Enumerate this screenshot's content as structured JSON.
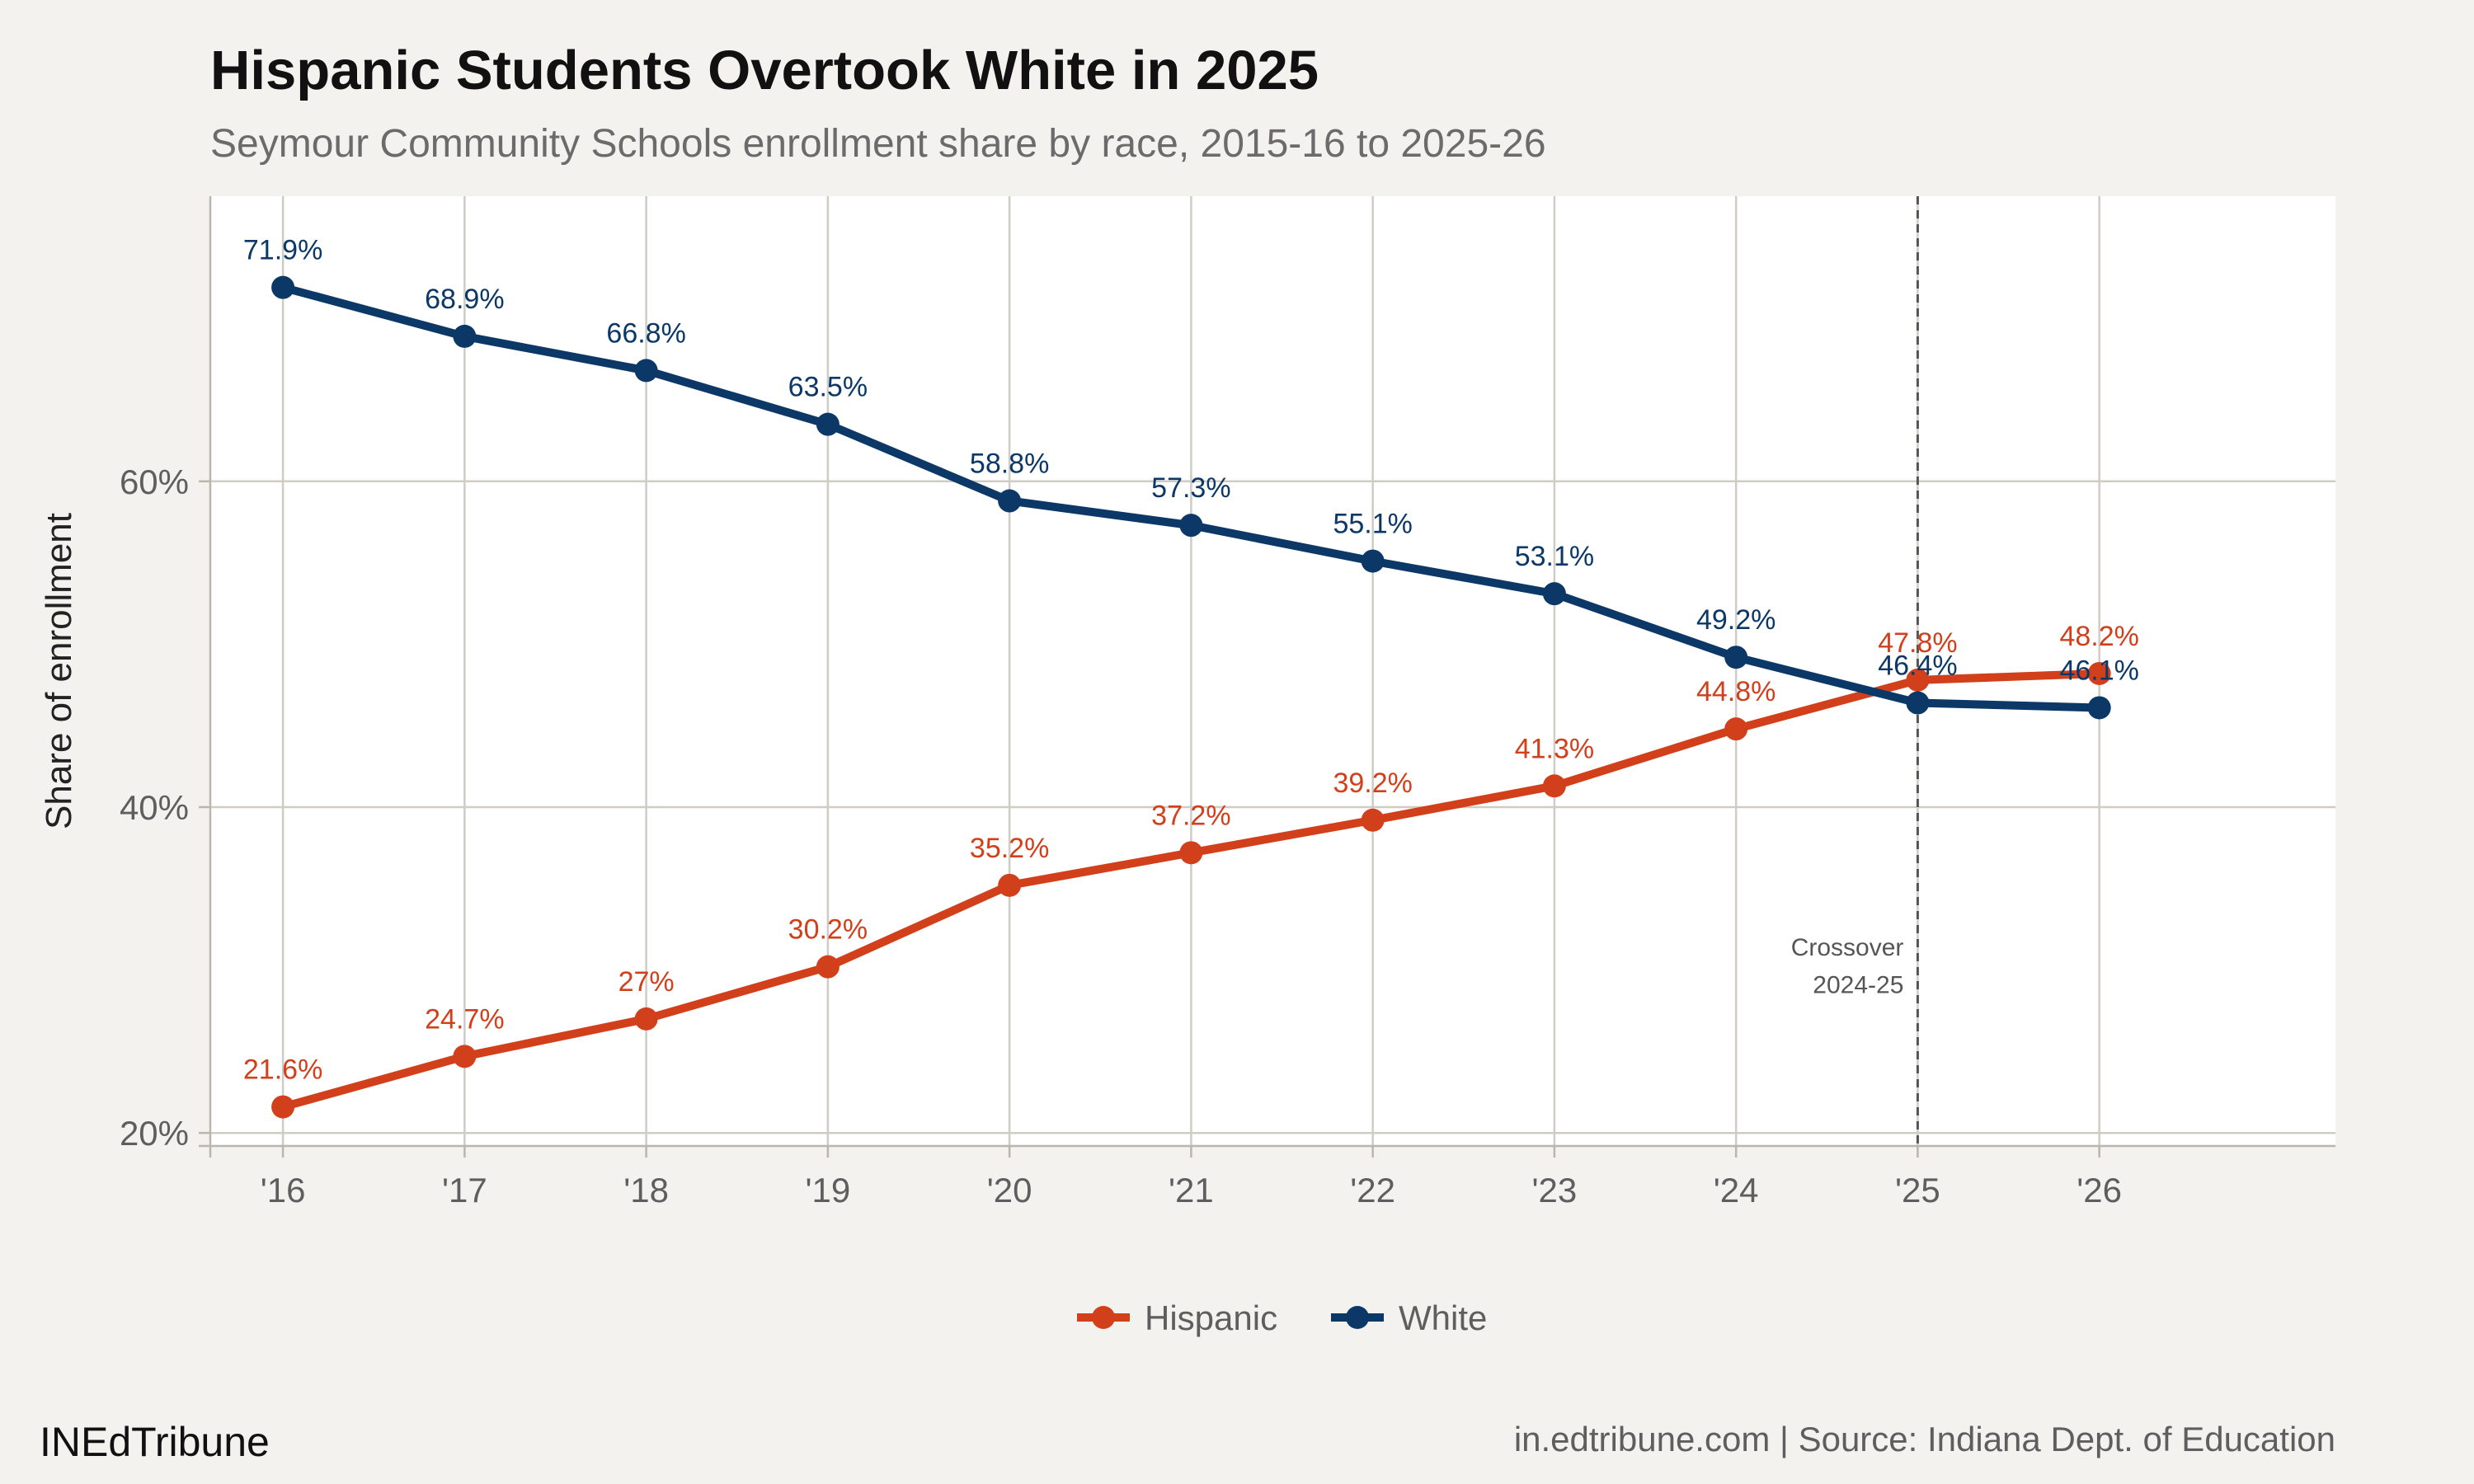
{
  "title": "Hispanic Students Overtook White in 2025",
  "subtitle": "Seymour Community Schools enrollment share by race, 2015-16 to 2025-26",
  "caption_left": "INEdTribune",
  "caption_right": "in.edtribune.com | Source: Indiana Dept. of Education",
  "annotation": {
    "x": "'25",
    "lines": [
      "Crossover",
      "2024-25"
    ]
  },
  "colors": {
    "hispanic": "#d2401b",
    "white": "#0c3868",
    "panel": "#ffffff",
    "background": "#f4f2ee",
    "grid": "#cfcbc5"
  },
  "chart_data": {
    "type": "line",
    "title": "Hispanic Students Overtook White in 2025",
    "xlabel": "",
    "ylabel": "Share of enrollment",
    "categories": [
      "'16",
      "'17",
      "'18",
      "'19",
      "'20",
      "'21",
      "'22",
      "'23",
      "'24",
      "'25",
      "'26"
    ],
    "x": [
      2016,
      2017,
      2018,
      2019,
      2020,
      2021,
      2022,
      2023,
      2024,
      2025,
      2026
    ],
    "xlim": [
      2015.6,
      2027.3
    ],
    "ylim": [
      19.2,
      77.5
    ],
    "y_ticks": [
      20,
      40,
      60
    ],
    "y_tick_labels": [
      "20%",
      "40%",
      "60%"
    ],
    "grid": true,
    "legend_position": "bottom",
    "series": [
      {
        "name": "Hispanic",
        "color": "#d2401b",
        "values": [
          21.6,
          24.7,
          27,
          30.2,
          35.2,
          37.2,
          39.2,
          41.3,
          44.8,
          47.8,
          48.2
        ],
        "labels": [
          "21.6%",
          "24.7%",
          "27%",
          "30.2%",
          "35.2%",
          "37.2%",
          "39.2%",
          "41.3%",
          "44.8%",
          "47.8%",
          "48.2%"
        ]
      },
      {
        "name": "White",
        "color": "#0c3868",
        "values": [
          71.9,
          68.9,
          66.8,
          63.5,
          58.8,
          57.3,
          55.1,
          53.1,
          49.2,
          46.4,
          46.1
        ],
        "labels": [
          "71.9%",
          "68.9%",
          "66.8%",
          "63.5%",
          "58.8%",
          "57.3%",
          "55.1%",
          "53.1%",
          "49.2%",
          "46.4%",
          "46.1%"
        ]
      }
    ]
  }
}
